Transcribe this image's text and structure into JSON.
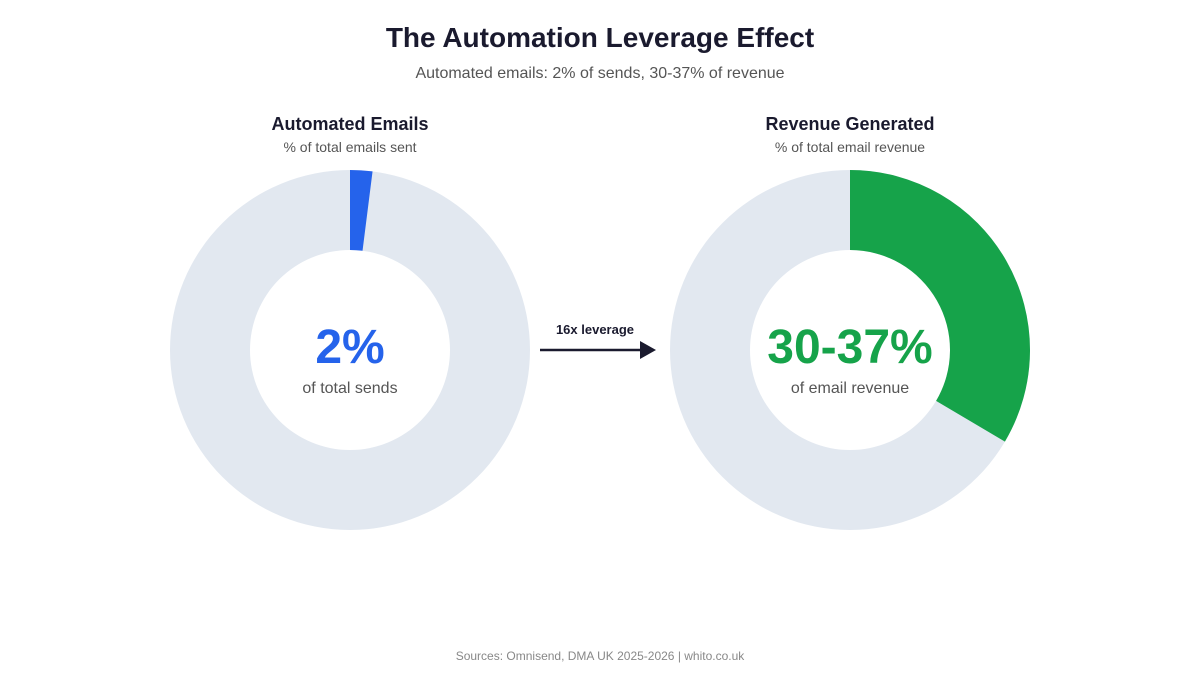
{
  "title": "The Automation Leverage Effect",
  "subtitle": "Automated emails: 2% of sends, 30-37% of revenue",
  "colors": {
    "track": "#e2e8f0",
    "blue": "#2563eb",
    "green": "#16a34a",
    "dark": "#1a1a2e"
  },
  "leverage_label": "16x leverage",
  "source": "Sources: Omnisend, DMA UK 2025-2026 | whito.co.uk",
  "chart_data": [
    {
      "type": "pie",
      "title": "Automated Emails",
      "subtitle": "% of total emails sent",
      "center_value": "2%",
      "center_label": "of total sends",
      "value_percent": 2,
      "color": "#2563eb"
    },
    {
      "type": "pie",
      "title": "Revenue Generated",
      "subtitle": "% of total email revenue",
      "center_value": "30-37%",
      "center_label": "of email revenue",
      "value_percent": 33.5,
      "color": "#16a34a"
    }
  ]
}
